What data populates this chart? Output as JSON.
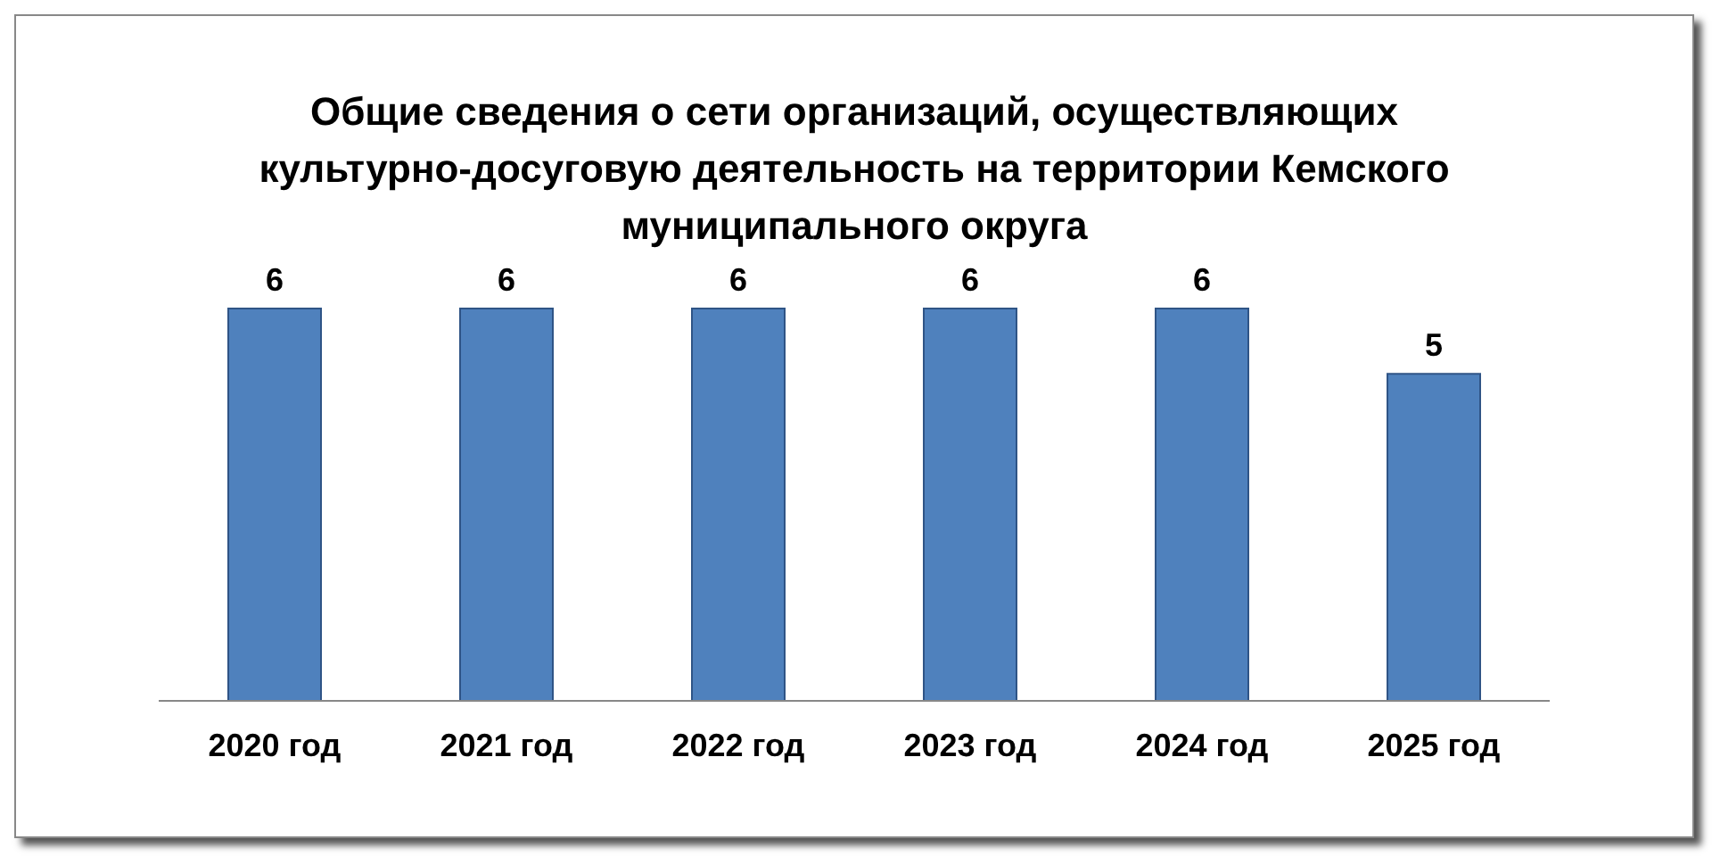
{
  "chart_data": {
    "type": "bar",
    "title": "Общие сведения о сети организаций, осуществляющих культурно-досуговую деятельность на территории Кемского муниципального округа",
    "categories": [
      "2020 год",
      "2021 год",
      "2022 год",
      "2023 год",
      "2024 год",
      "2025 год"
    ],
    "values": [
      6,
      6,
      6,
      6,
      6,
      5
    ],
    "color": "#4f81bd",
    "data_labels": true,
    "grid": false,
    "legend": false
  }
}
